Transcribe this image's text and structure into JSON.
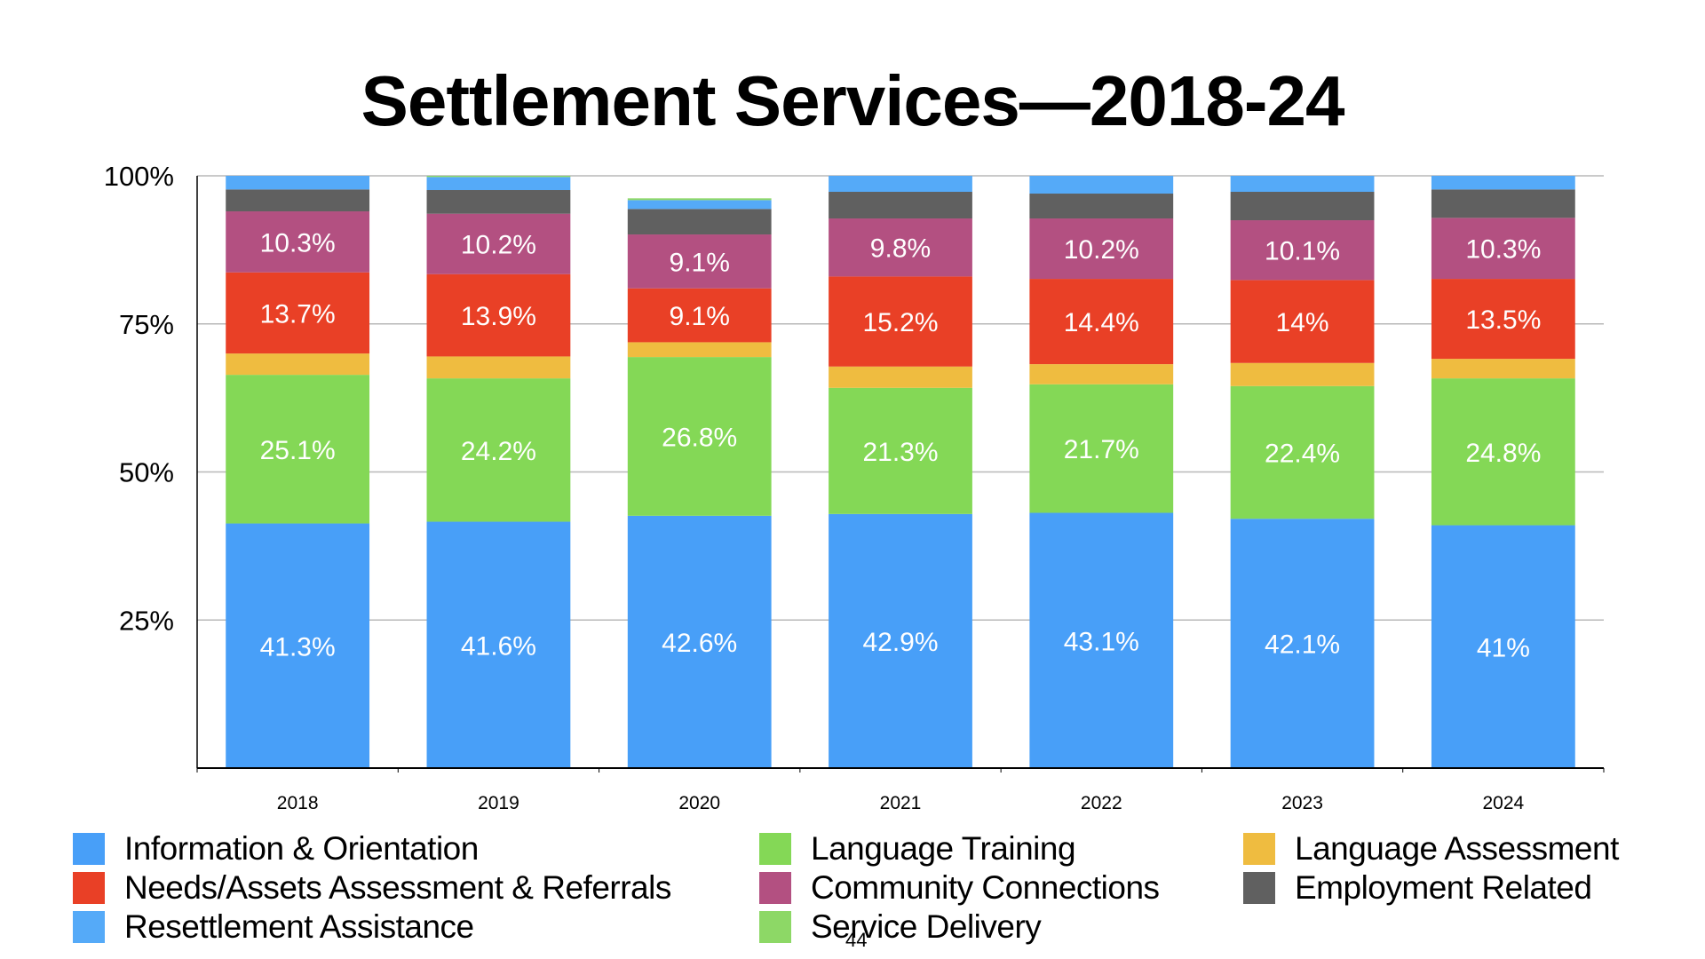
{
  "title": "Settlement Services—2018-24",
  "page_number": "44",
  "chart_data": {
    "type": "bar",
    "stacked": true,
    "title": "Settlement Services—2018-24",
    "xlabel": "",
    "ylabel": "",
    "ylim": [
      0,
      100
    ],
    "yticks": [
      "25%",
      "50%",
      "75%",
      "100%"
    ],
    "ytick_values": [
      25,
      50,
      75,
      100
    ],
    "grid": true,
    "legend_position": "bottom",
    "categories": [
      "2018",
      "2019",
      "2020",
      "2021",
      "2022",
      "2023",
      "2024"
    ],
    "series": [
      {
        "name": "Information & Orientation",
        "color": "#489ff8",
        "labeled": true,
        "values": [
          41.3,
          41.6,
          42.6,
          42.9,
          43.1,
          42.1,
          41.0
        ],
        "labels": [
          "41.3%",
          "41.6%",
          "42.6%",
          "42.9%",
          "43.1%",
          "42.1%",
          "41%"
        ]
      },
      {
        "name": "Language Training",
        "color": "#84d856",
        "labeled": true,
        "values": [
          25.1,
          24.2,
          26.8,
          21.3,
          21.7,
          22.4,
          24.8
        ],
        "labels": [
          "25.1%",
          "24.2%",
          "26.8%",
          "21.3%",
          "21.7%",
          "22.4%",
          "24.8%"
        ]
      },
      {
        "name": "Language Assessment",
        "color": "#efbc40",
        "labeled": false,
        "values": [
          3.6,
          3.7,
          2.5,
          3.6,
          3.4,
          3.9,
          3.3
        ]
      },
      {
        "name": "Needs/Assets Assessment & Referrals",
        "color": "#e94026",
        "labeled": true,
        "values": [
          13.7,
          13.9,
          9.1,
          15.2,
          14.4,
          14.0,
          13.5
        ],
        "labels": [
          "13.7%",
          "13.9%",
          "9.1%",
          "15.2%",
          "14.4%",
          "14%",
          "13.5%"
        ]
      },
      {
        "name": "Community Connections",
        "color": "#b35081",
        "labeled": true,
        "values": [
          10.3,
          10.2,
          9.1,
          9.8,
          10.2,
          10.1,
          10.3
        ],
        "labels": [
          "10.3%",
          "10.2%",
          "9.1%",
          "9.8%",
          "10.2%",
          "10.1%",
          "10.3%"
        ]
      },
      {
        "name": "Employment Related",
        "color": "#606060",
        "labeled": false,
        "values": [
          3.7,
          4.0,
          4.3,
          4.5,
          4.2,
          4.8,
          4.8
        ]
      },
      {
        "name": "Resettlement Assistance",
        "color": "#55aaf8",
        "labeled": false,
        "values": [
          2.3,
          2.2,
          1.5,
          2.7,
          3.0,
          2.7,
          2.3
        ]
      },
      {
        "name": "Service Delivery",
        "color": "#8dd866",
        "labeled": false,
        "values": [
          0.0,
          0.2,
          0.3,
          0.0,
          0.0,
          0.0,
          0.0
        ]
      }
    ]
  },
  "legend": {
    "items": [
      {
        "label": "Information & Orientation",
        "color": "#489ff8"
      },
      {
        "label": "Needs/Assets Assessment & Referrals",
        "color": "#e94026"
      },
      {
        "label": "Resettlement Assistance",
        "color": "#55aaf8"
      },
      {
        "label": "Language Training",
        "color": "#84d856"
      },
      {
        "label": "Community Connections",
        "color": "#b35081"
      },
      {
        "label": "Service Delivery",
        "color": "#8dd866"
      },
      {
        "label": "Language Assessment",
        "color": "#efbc40"
      },
      {
        "label": "Employment Related",
        "color": "#606060"
      }
    ]
  }
}
